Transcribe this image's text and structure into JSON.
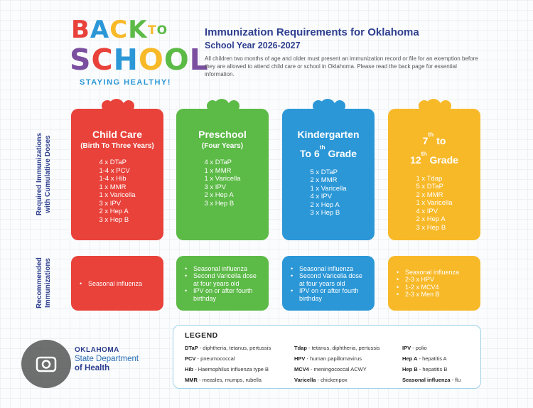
{
  "logo": {
    "words": [
      "BACK",
      "TO",
      "SCHOOL"
    ],
    "tagline": "STAYING HEALTHY!"
  },
  "header": {
    "title": "Immunization Requirements for Oklahoma",
    "subtitle": "School Year 2026-2027",
    "intro": "All children two months of age and older must present an immunization record or file for an exemption before they are allowed to attend child care or school in Oklahoma. Please read the back page for essential information."
  },
  "side_labels": {
    "required": [
      "Required Immunizations",
      "with Cumulative Doses"
    ],
    "recommended": [
      "Recommended",
      "Immunizations"
    ]
  },
  "columns": [
    {
      "title_lines": [
        [
          "Child Care"
        ]
      ],
      "subtitle": "(Birth To Three Years)",
      "color": "#e8423a",
      "required": [
        "4 x DTaP",
        "1-4 x PCV",
        "1-4 x Hib",
        "1 x MMR",
        "1 x Varicella",
        "3 x IPV",
        "2 x Hep A",
        "3 x Hep B"
      ],
      "recommended": [
        "Seasonal influenza"
      ]
    },
    {
      "title_lines": [
        [
          "Preschool"
        ]
      ],
      "subtitle": "(Four Years)",
      "color": "#5cba47",
      "required": [
        "4 x DTaP",
        "1 x MMR",
        "1 x Varicella",
        "3 x IPV",
        "2 x Hep A",
        "3 x Hep B"
      ],
      "recommended": [
        "Seasonal influenza",
        "Second Varicella dose at four years old",
        "IPV on or after fourth birthday"
      ]
    },
    {
      "title_lines": [
        [
          "Kindergarten"
        ],
        [
          "To 6",
          "th",
          " Grade"
        ]
      ],
      "color": "#2b97d7",
      "required": [
        "5 x DTaP",
        "2 x MMR",
        "1 x Varicella",
        "4 x IPV",
        "2 x Hep A",
        "3 x Hep B"
      ],
      "recommended": [
        "Seasonal influenza",
        "Second Varicella dose at four years old",
        "IPV on or after fourth birthday"
      ]
    },
    {
      "title_lines": [
        [
          "7",
          "th",
          " to"
        ],
        [
          "12",
          "th",
          " Grade"
        ]
      ],
      "color": "#f8b929",
      "required": [
        "1 x Tdap",
        "5 x DTaP",
        "2 x MMR",
        "1 x Varicella",
        "4 x IPV",
        "2 x Hep A",
        "3 x Hep B"
      ],
      "recommended": [
        "Seasonal influenza",
        "2-3 x HPV",
        "1-2 x MCV4",
        "2-3 x Men B"
      ]
    }
  ],
  "legend": {
    "title": "LEGEND",
    "columns": [
      [
        {
          "abbr": "DTaP",
          "desc": "- diphtheria, tetanus, pertussis"
        },
        {
          "abbr": "PCV",
          "desc": "- pneumococcal"
        },
        {
          "abbr": "Hib",
          "desc": "- Haemophilus influenza type B"
        },
        {
          "abbr": "MMR",
          "desc": "- measles, mumps, rubella"
        }
      ],
      [
        {
          "abbr": "Tdap",
          "desc": "- tetanus, diphtheria, pertussis"
        },
        {
          "abbr": "HPV",
          "desc": "- human papillomavirus"
        },
        {
          "abbr": "MCV4",
          "desc": "- meningococcal ACWY"
        },
        {
          "abbr": "Varicella",
          "desc": "- chickenpox"
        }
      ],
      [
        {
          "abbr": "IPV",
          "desc": "- polio"
        },
        {
          "abbr": "Hep A",
          "desc": "- hepatitis A"
        },
        {
          "abbr": "Hep B",
          "desc": "- hepatitis B"
        },
        {
          "abbr": "Seasonal influenza",
          "desc": "- flu"
        }
      ]
    ]
  },
  "agency": {
    "lines": [
      "OKLAHOMA",
      "State Department",
      "of Health"
    ]
  }
}
